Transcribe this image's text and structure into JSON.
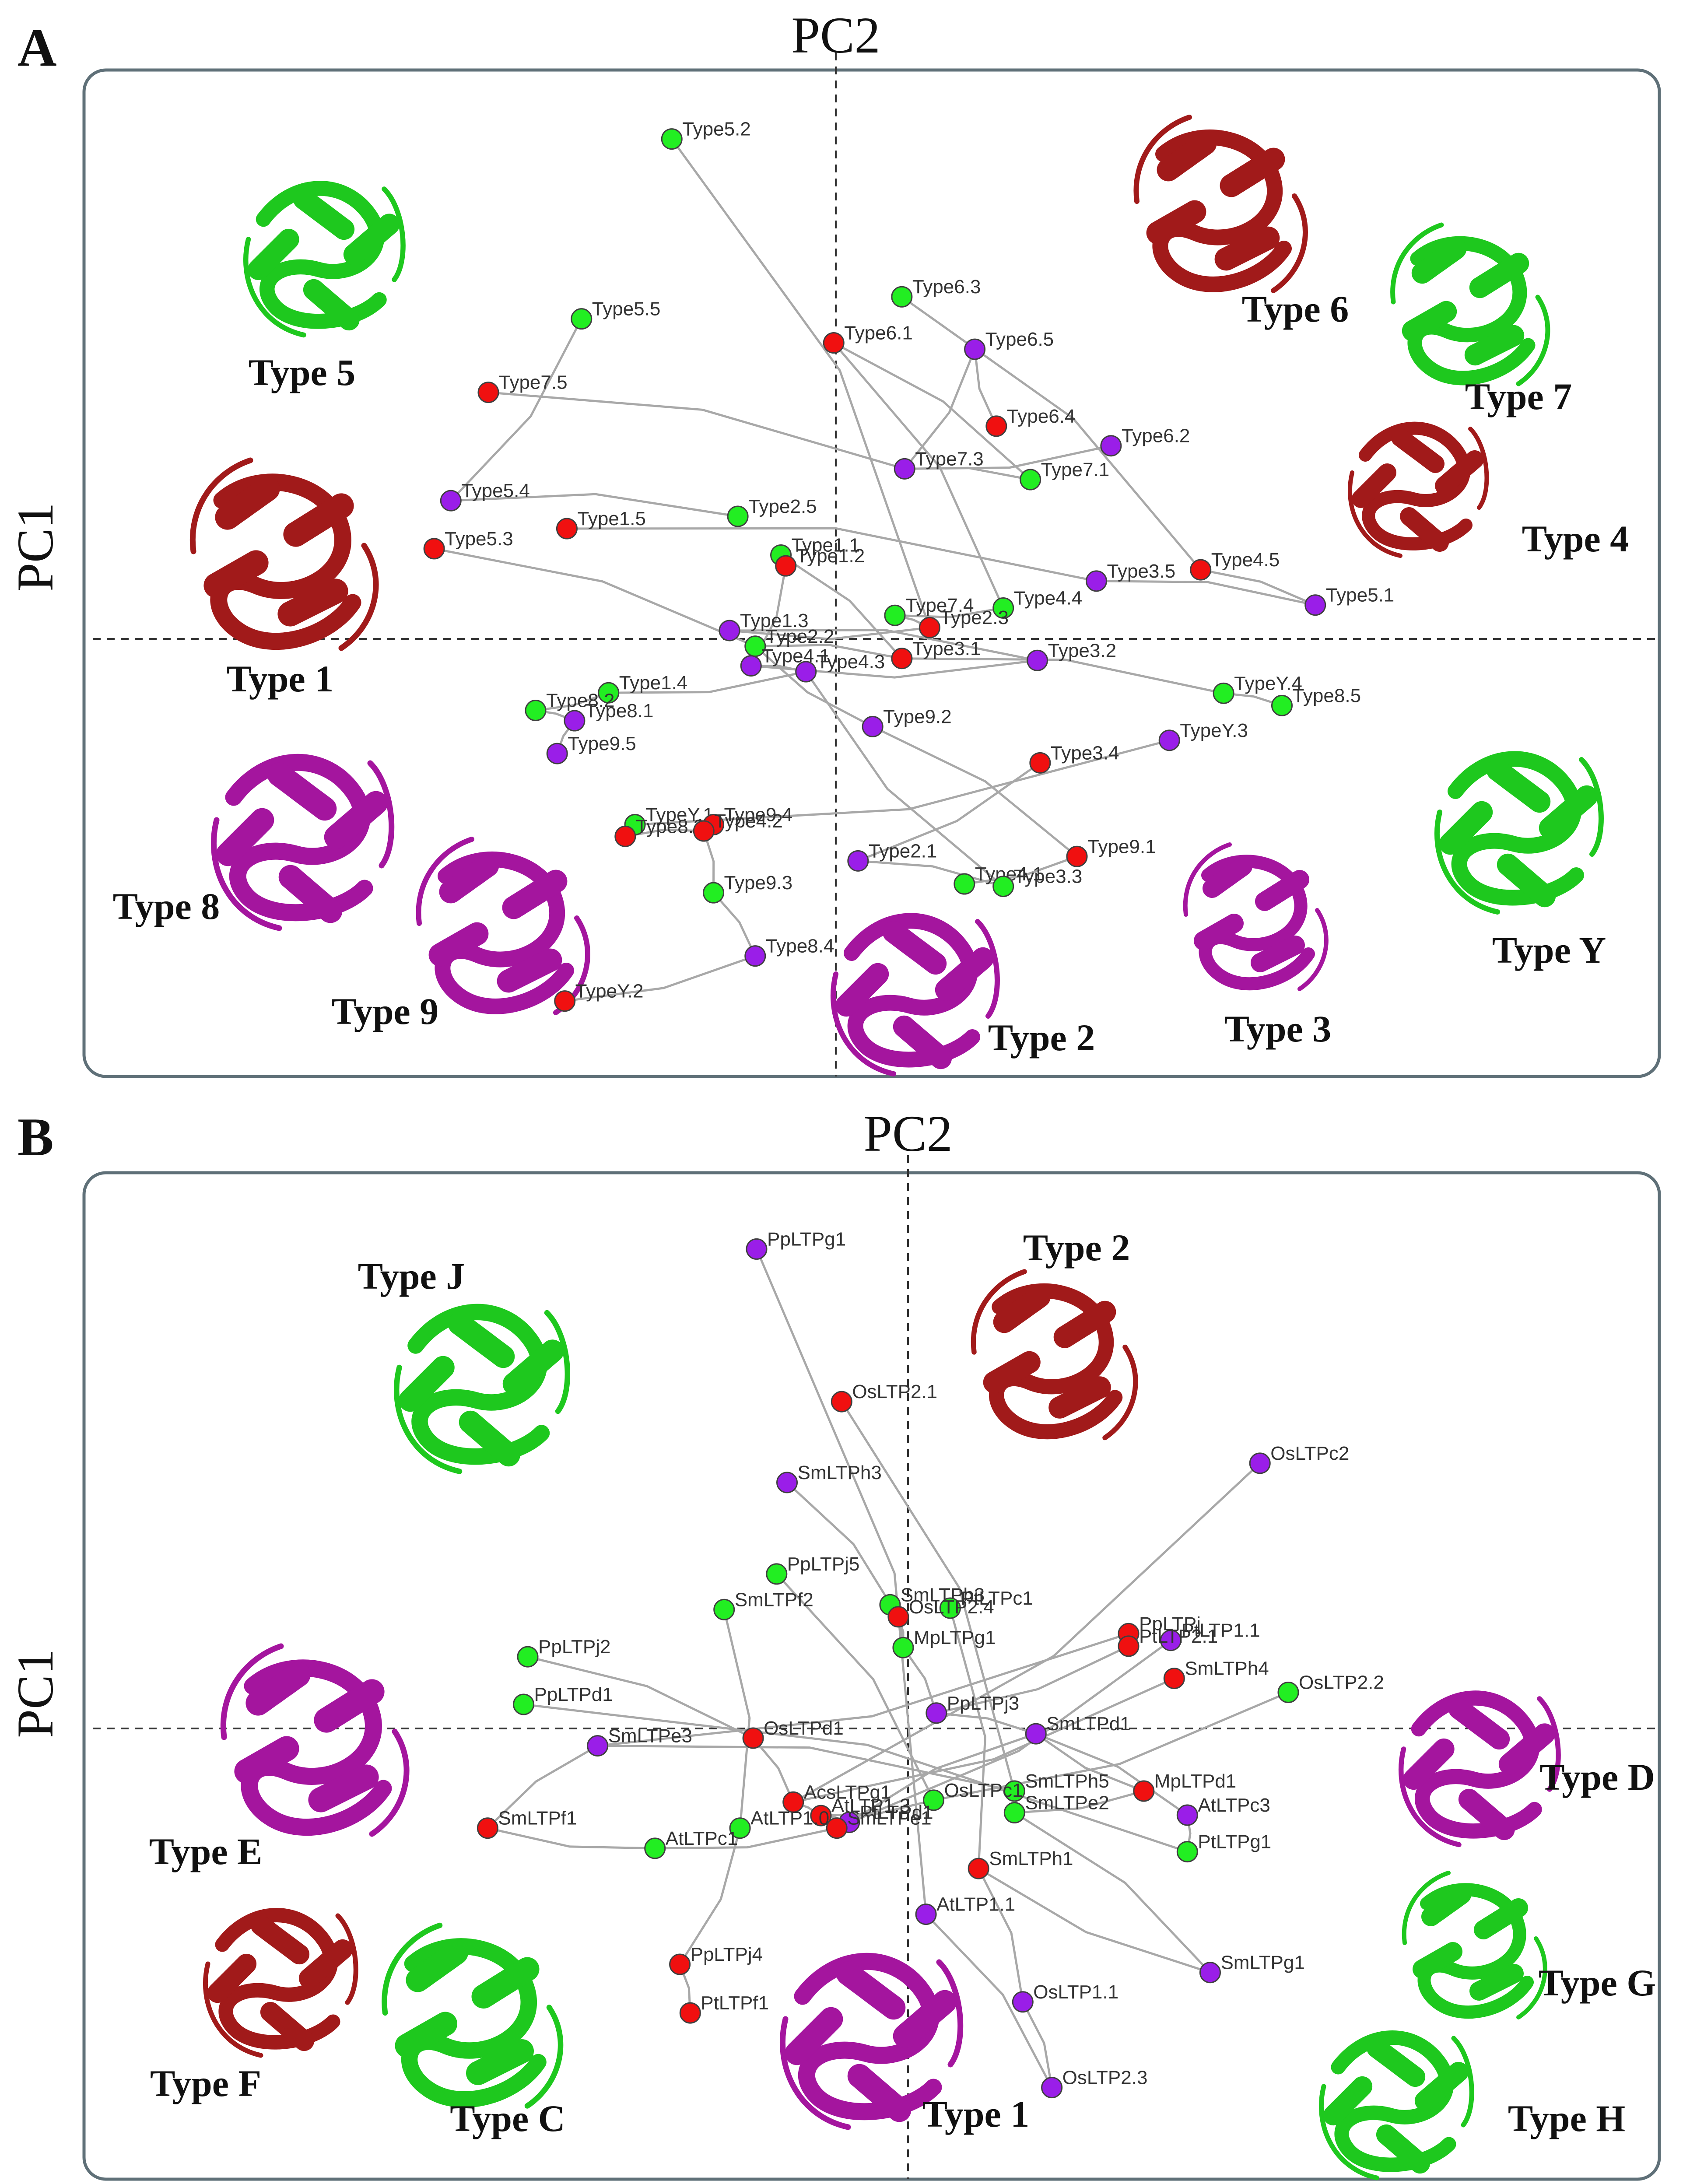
{
  "colors": {
    "red": "#f01010",
    "green": "#22ee22",
    "purple": "#9a1ee8",
    "struct_red": "#a11a1a",
    "struct_green": "#1ec81e",
    "struct_magenta": "#a4159e"
  },
  "chart_data": [
    {
      "type": "scatter",
      "panel": "A",
      "title": "PC2",
      "xlabel": "PC2",
      "ylabel": "PC1",
      "xlim": [
        -1,
        1
      ],
      "ylim": [
        -1,
        1
      ],
      "grid": false,
      "points": [
        {
          "label": "Type5.2",
          "x": -0.236,
          "y": 1.02,
          "color": "green"
        },
        {
          "label": "Type5.5",
          "x": -0.366,
          "y": 0.653,
          "color": "green"
        },
        {
          "label": "Type6.3",
          "x": 0.095,
          "y": 0.698,
          "color": "green"
        },
        {
          "label": "Type6.1",
          "x": -0.003,
          "y": 0.604,
          "color": "red"
        },
        {
          "label": "Type6.5",
          "x": 0.2,
          "y": 0.591,
          "color": "purple"
        },
        {
          "label": "Type7.5",
          "x": -0.5,
          "y": 0.503,
          "color": "red"
        },
        {
          "label": "Type6.4",
          "x": 0.231,
          "y": 0.434,
          "color": "red"
        },
        {
          "label": "Type6.2",
          "x": 0.396,
          "y": 0.394,
          "color": "purple"
        },
        {
          "label": "Type7.3",
          "x": 0.099,
          "y": 0.347,
          "color": "purple"
        },
        {
          "label": "Type7.1",
          "x": 0.28,
          "y": 0.325,
          "color": "green"
        },
        {
          "label": "Type5.4",
          "x": -0.554,
          "y": 0.282,
          "color": "purple"
        },
        {
          "label": "Type2.5",
          "x": -0.141,
          "y": 0.25,
          "color": "green"
        },
        {
          "label": "Type1.5",
          "x": -0.387,
          "y": 0.225,
          "color": "red"
        },
        {
          "label": "Type5.3",
          "x": -0.578,
          "y": 0.184,
          "color": "red"
        },
        {
          "label": "Type1.1",
          "x": -0.079,
          "y": 0.171,
          "color": "green"
        },
        {
          "label": "Type1.2",
          "x": -0.072,
          "y": 0.149,
          "color": "red"
        },
        {
          "label": "Type4.5",
          "x": 0.525,
          "y": 0.141,
          "color": "red"
        },
        {
          "label": "Type3.5",
          "x": 0.375,
          "y": 0.118,
          "color": "purple"
        },
        {
          "label": "Type5.1",
          "x": 0.69,
          "y": 0.069,
          "color": "purple"
        },
        {
          "label": "Type4.4",
          "x": 0.241,
          "y": 0.063,
          "color": "green"
        },
        {
          "label": "Type7.4",
          "x": 0.085,
          "y": 0.048,
          "color": "green"
        },
        {
          "label": "Type2.3",
          "x": 0.135,
          "y": 0.023,
          "color": "red"
        },
        {
          "label": "Type1.3",
          "x": -0.153,
          "y": 0.017,
          "color": "purple"
        },
        {
          "label": "Type2.2",
          "x": -0.116,
          "y": -0.015,
          "color": "green"
        },
        {
          "label": "Type3.1",
          "x": 0.095,
          "y": -0.04,
          "color": "red"
        },
        {
          "label": "Type3.2",
          "x": 0.29,
          "y": -0.044,
          "color": "purple"
        },
        {
          "label": "Type4.1",
          "x": -0.122,
          "y": -0.055,
          "color": "purple"
        },
        {
          "label": "Type4.3",
          "x": -0.043,
          "y": -0.067,
          "color": "purple"
        },
        {
          "label": "Type1.4",
          "x": -0.327,
          "y": -0.11,
          "color": "green"
        },
        {
          "label": "Type8.2",
          "x": -0.432,
          "y": -0.146,
          "color": "green"
        },
        {
          "label": "Type8.1",
          "x": -0.376,
          "y": -0.167,
          "color": "purple"
        },
        {
          "label": "TypeY.4",
          "x": 0.558,
          "y": -0.111,
          "color": "green"
        },
        {
          "label": "Type8.5",
          "x": 0.642,
          "y": -0.136,
          "color": "green"
        },
        {
          "label": "Type9.2",
          "x": 0.053,
          "y": -0.179,
          "color": "purple"
        },
        {
          "label": "TypeY.3",
          "x": 0.48,
          "y": -0.207,
          "color": "purple"
        },
        {
          "label": "Type9.5",
          "x": -0.401,
          "y": -0.234,
          "color": "purple"
        },
        {
          "label": "Type3.4",
          "x": 0.294,
          "y": -0.253,
          "color": "red"
        },
        {
          "label": "TypeY.1",
          "x": -0.289,
          "y": -0.379,
          "color": "green"
        },
        {
          "label": "Type9.4",
          "x": -0.176,
          "y": -0.379,
          "color": "red"
        },
        {
          "label": "Type8.3",
          "x": -0.303,
          "y": -0.403,
          "color": "red"
        },
        {
          "label": "Type4.2",
          "x": -0.19,
          "y": -0.392,
          "color": "red"
        },
        {
          "label": "Type9.1",
          "x": 0.347,
          "y": -0.444,
          "color": "red"
        },
        {
          "label": "Type2.1",
          "x": 0.032,
          "y": -0.453,
          "color": "purple"
        },
        {
          "label": "Type4.1",
          "x": 0.185,
          "y": -0.5,
          "color": "green"
        },
        {
          "label": "Type3.3",
          "x": 0.241,
          "y": -0.505,
          "color": "green"
        },
        {
          "label": "Type9.3",
          "x": -0.176,
          "y": -0.518,
          "color": "green"
        },
        {
          "label": "Type8.4",
          "x": -0.116,
          "y": -0.647,
          "color": "purple"
        },
        {
          "label": "TypeY.2",
          "x": -0.39,
          "y": -0.739,
          "color": "red"
        }
      ],
      "structure_labels": [
        "Type 5",
        "Type 6",
        "Type 7",
        "Type 4",
        "Type 1",
        "Type 8",
        "Type 9",
        "Type 2",
        "Type 3",
        "Type Y"
      ]
    },
    {
      "type": "scatter",
      "panel": "B",
      "title": "PC2",
      "xlabel": "PC2",
      "ylabel": "PC1",
      "xlim": [
        -1,
        1
      ],
      "ylim": [
        -1,
        1
      ],
      "grid": false,
      "points": [
        {
          "label": "PpLTPg1",
          "x": -0.219,
          "y": 0.996,
          "color": "purple"
        },
        {
          "label": "OsLTP2.1",
          "x": -0.096,
          "y": 0.679,
          "color": "red"
        },
        {
          "label": "OsLTPc2",
          "x": 0.509,
          "y": 0.551,
          "color": "purple"
        },
        {
          "label": "SmLTPh3",
          "x": -0.175,
          "y": 0.511,
          "color": "purple"
        },
        {
          "label": "PpLTPj5",
          "x": -0.19,
          "y": 0.321,
          "color": "green"
        },
        {
          "label": "SmLTPf2",
          "x": -0.266,
          "y": 0.247,
          "color": "green"
        },
        {
          "label": "SmLTPb3",
          "x": -0.026,
          "y": 0.257,
          "color": "green"
        },
        {
          "label": "PtLTPc1",
          "x": 0.061,
          "y": 0.25,
          "color": "green"
        },
        {
          "label": "OsLTP2.4",
          "x": -0.014,
          "y": 0.232,
          "color": "red"
        },
        {
          "label": "PpLTPj",
          "x": 0.319,
          "y": 0.197,
          "color": "red"
        },
        {
          "label": "PtLTP1.1",
          "x": 0.38,
          "y": 0.183,
          "color": "purple"
        },
        {
          "label": "PtLTP2.1",
          "x": 0.319,
          "y": 0.171,
          "color": "red"
        },
        {
          "label": "MpLTPg1",
          "x": -0.007,
          "y": 0.168,
          "color": "green"
        },
        {
          "label": "PpLTPj2",
          "x": -0.55,
          "y": 0.149,
          "color": "green"
        },
        {
          "label": "SmLTPh4",
          "x": 0.385,
          "y": 0.104,
          "color": "red"
        },
        {
          "label": "OsLTP2.2",
          "x": 0.55,
          "y": 0.075,
          "color": "green"
        },
        {
          "label": "PpLTPd1",
          "x": -0.556,
          "y": 0.05,
          "color": "green"
        },
        {
          "label": "PpLTPj3",
          "x": 0.041,
          "y": 0.032,
          "color": "purple"
        },
        {
          "label": "SmLTPd1",
          "x": 0.185,
          "y": -0.011,
          "color": "purple"
        },
        {
          "label": "OsLTPd1",
          "x": -0.224,
          "y": -0.02,
          "color": "red"
        },
        {
          "label": "SmLTPe3",
          "x": -0.449,
          "y": -0.036,
          "color": "purple"
        },
        {
          "label": "MpLTPd1",
          "x": 0.341,
          "y": -0.13,
          "color": "red"
        },
        {
          "label": "SmLTPh5",
          "x": 0.154,
          "y": -0.13,
          "color": "green"
        },
        {
          "label": "OsLTPc1",
          "x": 0.037,
          "y": -0.149,
          "color": "green"
        },
        {
          "label": "AcsLTPg1",
          "x": -0.166,
          "y": -0.153,
          "color": "red"
        },
        {
          "label": "SmLTPe2",
          "x": 0.154,
          "y": -0.175,
          "color": "green"
        },
        {
          "label": "AtLTPc3",
          "x": 0.404,
          "y": -0.18,
          "color": "purple"
        },
        {
          "label": "AtLTP1.3",
          "x": -0.126,
          "y": -0.181,
          "color": "red"
        },
        {
          "label": "PtLTPd1",
          "x": -0.085,
          "y": -0.195,
          "color": "purple"
        },
        {
          "label": "SmLTPe1",
          "x": -0.103,
          "y": -0.207,
          "color": "red"
        },
        {
          "label": "AtLTP1.0",
          "x": -0.243,
          "y": -0.207,
          "color": "green"
        },
        {
          "label": "AtLTPc1",
          "x": -0.366,
          "y": -0.249,
          "color": "green"
        },
        {
          "label": "SmLTPf1",
          "x": -0.608,
          "y": -0.207,
          "color": "red"
        },
        {
          "label": "PtLTPg1",
          "x": 0.404,
          "y": -0.256,
          "color": "green"
        },
        {
          "label": "SmLTPh1",
          "x": 0.102,
          "y": -0.291,
          "color": "red"
        },
        {
          "label": "AtLTP1.1",
          "x": 0.026,
          "y": -0.386,
          "color": "purple"
        },
        {
          "label": "SmLTPg1",
          "x": 0.437,
          "y": -0.507,
          "color": "purple"
        },
        {
          "label": "PpLTPj4",
          "x": -0.33,
          "y": -0.49,
          "color": "red"
        },
        {
          "label": "OsLTP1.1",
          "x": 0.166,
          "y": -0.568,
          "color": "purple"
        },
        {
          "label": "PtLTPf1",
          "x": -0.315,
          "y": -0.591,
          "color": "red"
        },
        {
          "label": "OsLTP2.3",
          "x": 0.208,
          "y": -0.746,
          "color": "purple"
        }
      ],
      "structure_labels": [
        "Type J",
        "Type 2",
        "Type E",
        "Type D",
        "Type F",
        "Type C",
        "Type 1",
        "Type G",
        "Type H"
      ]
    }
  ]
}
